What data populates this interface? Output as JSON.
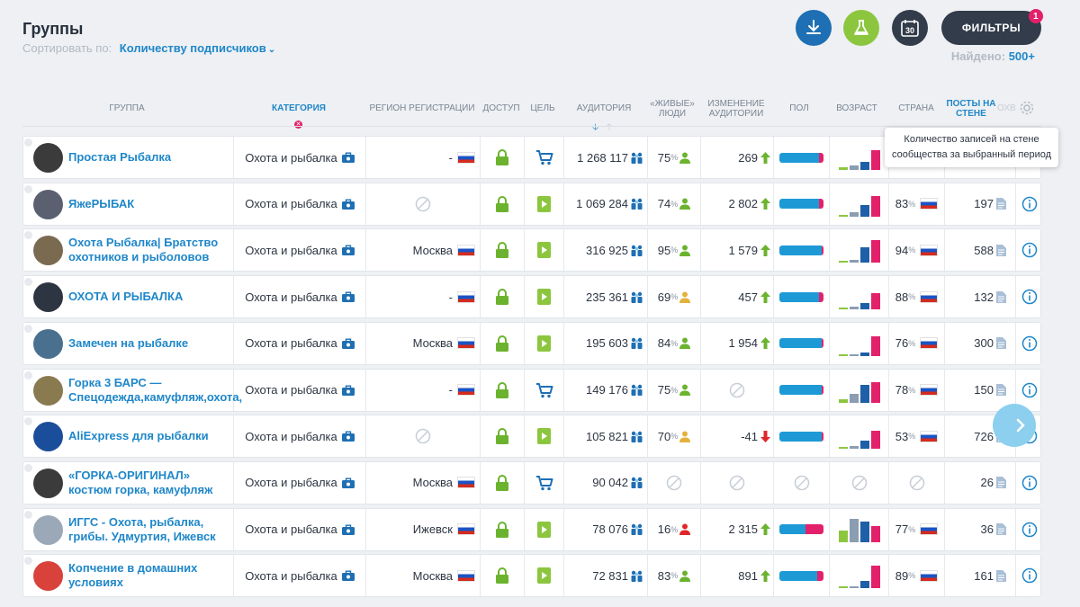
{
  "page": {
    "title": "Группы",
    "sort_label": "Сортировать по:",
    "sort_value": "Количеству подписчиков",
    "found_label": "Найдено:",
    "found_value": "500+"
  },
  "toolbar": {
    "download": "download-icon",
    "lab": "flask-icon",
    "calendar": "calendar-30-icon",
    "filters_label": "ФИЛЬТРЫ",
    "filters_badge": "1"
  },
  "headers": {
    "group": "ГРУППА",
    "category": "КАТЕГОРИЯ",
    "region": "РЕГИОН РЕГИСТРАЦИИ",
    "access": "ДОСТУП",
    "goal": "ЦЕЛЬ",
    "audience": "АУДИТОРИЯ",
    "live_1": "«ЖИВЫЕ»",
    "live_2": "ЛЮДИ",
    "change_1": "ИЗМЕНЕНИЕ",
    "change_2": "АУДИТОРИИ",
    "sex": "ПОЛ",
    "age": "ВОЗРАСТ",
    "country": "СТРАНА",
    "posts_1": "ПОСТЫ НА",
    "posts_2": "СТЕНЕ",
    "cut": "ОХВ"
  },
  "tooltip": {
    "line1": "Количество записей на стене",
    "line2": "сообщества за выбранный период"
  },
  "colors": {
    "accent": "#1f87c9",
    "male": "#1d9ad6",
    "female": "#e3216b",
    "age_light": "#8cc63f",
    "age_mid": "#8a9db1",
    "age_dark": "#1e5fa8"
  },
  "rows": [
    {
      "name": "Простая Рыбалка",
      "category": "Охота и рыбалка",
      "region": "-",
      "region_flag": true,
      "goal": "cart",
      "audience": "1 268 117",
      "live": "75",
      "live_state": "green",
      "change": "269",
      "change_dir": "up",
      "sex_male": 0.9,
      "age": [
        0.1,
        0.18,
        0.35,
        0.85
      ],
      "country_pct": "",
      "posts": "",
      "avatar": "#3b3b3b"
    },
    {
      "name": "ЯжеРЫБАК",
      "category": "Охота и рыбалка",
      "region": "",
      "region_flag": false,
      "goal": "doc",
      "audience": "1 069 284",
      "live": "74",
      "live_state": "green",
      "change": "2 802",
      "change_dir": "up",
      "sex_male": 0.9,
      "age": [
        0.0,
        0.2,
        0.5,
        0.9
      ],
      "country_pct": "83",
      "posts": "197",
      "avatar": "#5a6070"
    },
    {
      "name": "Охота Рыбалка| Братство охотников и рыболовов",
      "category": "Охота и рыбалка",
      "region": "Москва",
      "region_flag": true,
      "goal": "doc",
      "audience": "316 925",
      "live": "95",
      "live_state": "green",
      "change": "1 579",
      "change_dir": "up",
      "sex_male": 0.95,
      "age": [
        0.0,
        0.12,
        0.65,
        0.95
      ],
      "country_pct": "94",
      "posts": "588",
      "avatar": "#7a6a50"
    },
    {
      "name": "ОХОТА И РЫБАЛКА",
      "category": "Охота и рыбалка",
      "region": "-",
      "region_flag": true,
      "goal": "doc",
      "audience": "235 361",
      "live": "69",
      "live_state": "orange",
      "change": "457",
      "change_dir": "up",
      "sex_male": 0.9,
      "age": [
        0.05,
        0.12,
        0.25,
        0.7
      ],
      "country_pct": "88",
      "posts": "132",
      "avatar": "#2d3542"
    },
    {
      "name": "Замечен на рыбалке",
      "category": "Охота и рыбалка",
      "region": "Москва",
      "region_flag": true,
      "goal": "doc",
      "audience": "195 603",
      "live": "84",
      "live_state": "green",
      "change": "1 954",
      "change_dir": "up",
      "sex_male": 0.95,
      "age": [
        0.05,
        0.0,
        0.15,
        0.85
      ],
      "country_pct": "76",
      "posts": "300",
      "avatar": "#4a7090"
    },
    {
      "name": "Горка 3 БАРС — Спецодежда,камуфляж,охота,",
      "category": "Охота и рыбалка",
      "region": "-",
      "region_flag": true,
      "goal": "cart",
      "audience": "149 176",
      "live": "75",
      "live_state": "green",
      "change": "",
      "change_dir": "none",
      "sex_male": 0.95,
      "age": [
        0.15,
        0.4,
        0.75,
        0.9
      ],
      "country_pct": "78",
      "posts": "150",
      "avatar": "#8a7a50"
    },
    {
      "name": "AliExpress для рыбалки",
      "category": "Охота и рыбалка",
      "region": "",
      "region_flag": false,
      "goal": "doc",
      "audience": "105 821",
      "live": "70",
      "live_state": "orange",
      "change": "-41",
      "change_dir": "down",
      "sex_male": 0.95,
      "age": [
        0.0,
        0.1,
        0.35,
        0.75
      ],
      "country_pct": "53",
      "posts": "726",
      "avatar": "#1b4e9a"
    },
    {
      "name": "«ГОРКА-ОРИГИНАЛ» костюм горка, камуфляж",
      "category": "Охота и рыбалка",
      "region": "Москва",
      "region_flag": true,
      "goal": "cart",
      "audience": "90 042",
      "live": "",
      "live_state": "none",
      "change": "",
      "change_dir": "none",
      "sex_male": 0,
      "age": [],
      "country_pct": "",
      "posts": "26",
      "avatar": "#3b3b3b"
    },
    {
      "name": "ИГГС - Охота, рыбалка, грибы. Удмуртия, Ижевск",
      "category": "Охота и рыбалка",
      "region": "Ижевск",
      "region_flag": true,
      "goal": "doc",
      "audience": "78 076",
      "live": "16",
      "live_state": "red",
      "change": "2 315",
      "change_dir": "up",
      "sex_male": 0.6,
      "age": [
        0.5,
        1.0,
        0.9,
        0.7
      ],
      "country_pct": "77",
      "posts": "36",
      "avatar": "#9aa8b8"
    },
    {
      "name": "Копчение в домашних условиях",
      "category": "Охота и рыбалка",
      "region": "Москва",
      "region_flag": true,
      "goal": "doc",
      "audience": "72 831",
      "live": "83",
      "live_state": "green",
      "change": "891",
      "change_dir": "up",
      "sex_male": 0.85,
      "age": [
        0.0,
        0.05,
        0.3,
        0.95
      ],
      "country_pct": "89",
      "posts": "161",
      "avatar": "#d8423a"
    }
  ]
}
